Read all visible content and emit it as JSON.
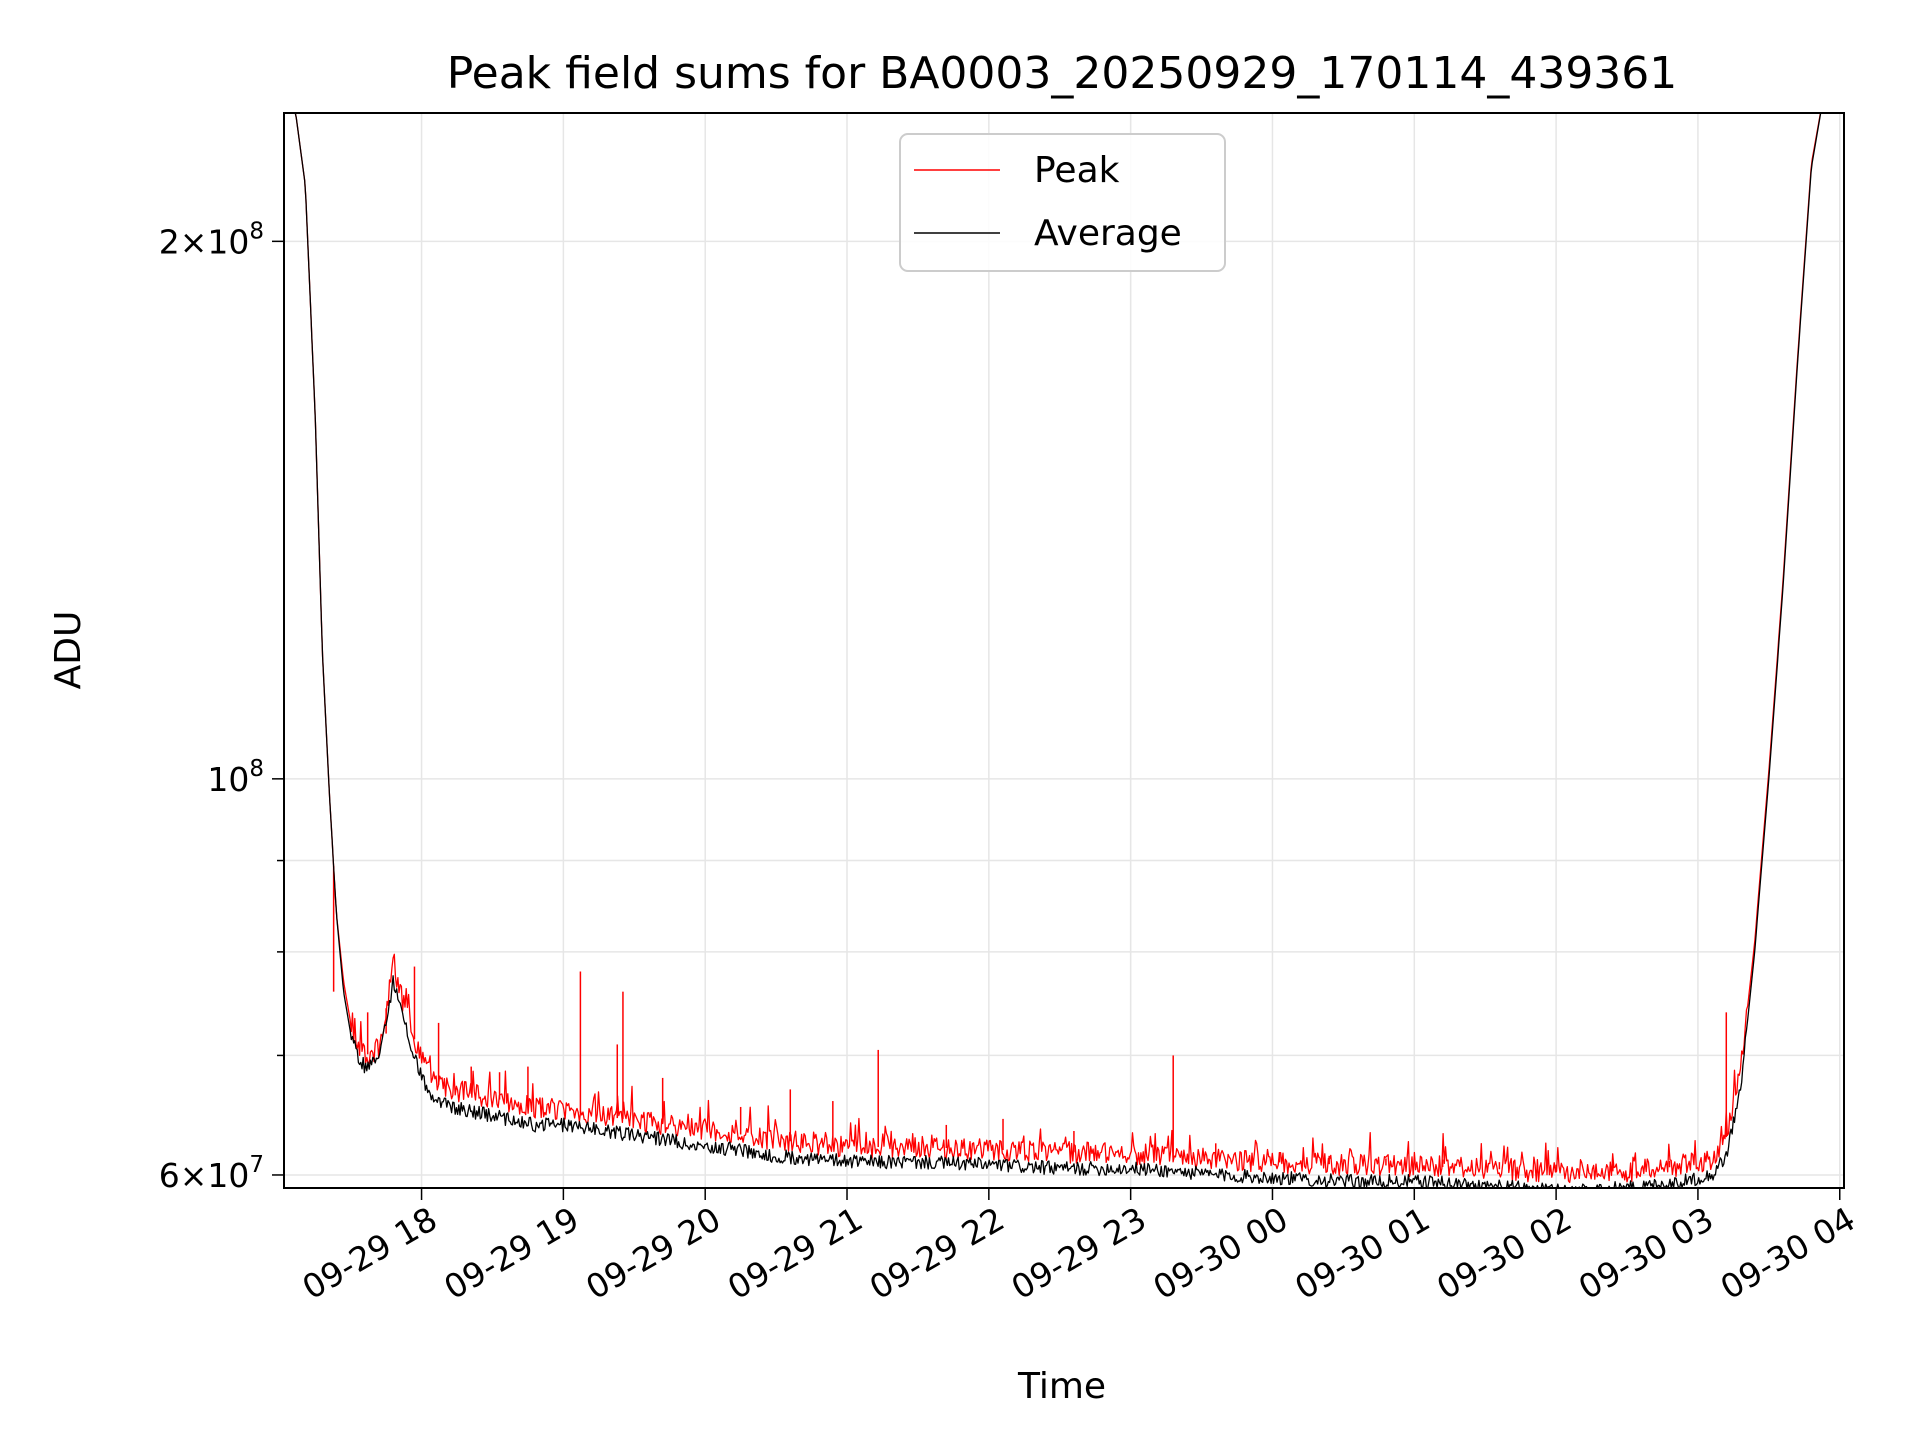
{
  "chart_data": {
    "type": "line",
    "title": "Peak field sums for BA0003_20250929_170114_439361",
    "xlabel": "Time",
    "ylabel": "ADU",
    "x_unit": "hours since 09-29 17:00",
    "xlim": [
      0.03,
      11.03
    ],
    "ylim": [
      59000000,
      236000000
    ],
    "yscale": "log",
    "grid": true,
    "legend_position": "upper-center",
    "x_ticks": [
      {
        "value": 1,
        "label": "09-29 18"
      },
      {
        "value": 2,
        "label": "09-29 19"
      },
      {
        "value": 3,
        "label": "09-29 20"
      },
      {
        "value": 4,
        "label": "09-29 21"
      },
      {
        "value": 5,
        "label": "09-29 22"
      },
      {
        "value": 6,
        "label": "09-29 23"
      },
      {
        "value": 7,
        "label": "09-30 00"
      },
      {
        "value": 8,
        "label": "09-30 01"
      },
      {
        "value": 9,
        "label": "09-30 02"
      },
      {
        "value": 10,
        "label": "09-30 03"
      },
      {
        "value": 11,
        "label": "09-30 04"
      }
    ],
    "y_major_ticks": [
      {
        "value": 60000000,
        "label_mantissa": "6×10",
        "label_exp": "7"
      },
      {
        "value": 100000000,
        "label_mantissa": "10",
        "label_exp": "8"
      },
      {
        "value": 200000000,
        "label_mantissa": "2×10",
        "label_exp": "8"
      }
    ],
    "y_minor_ticks": [
      70000000,
      80000000,
      90000000
    ],
    "series": [
      {
        "name": "Average",
        "color": "#000000",
        "x": [
          0.1,
          0.18,
          0.25,
          0.3,
          0.35,
          0.4,
          0.45,
          0.5,
          0.55,
          0.6,
          0.7,
          0.8,
          0.9,
          1.0,
          1.1,
          1.2,
          1.4,
          1.6,
          1.8,
          2.0,
          2.3,
          2.6,
          2.9,
          3.2,
          3.5,
          3.8,
          4.1,
          4.5,
          5.0,
          5.5,
          6.0,
          6.3,
          6.6,
          7.0,
          7.5,
          8.0,
          8.5,
          9.0,
          9.5,
          9.9,
          10.1,
          10.2,
          10.3,
          10.4,
          10.5,
          10.6,
          10.7,
          10.8,
          10.9,
          11.0,
          11.05
        ],
        "y": [
          240000000,
          215000000,
          160000000,
          118000000,
          98000000,
          84000000,
          76000000,
          72000000,
          70000000,
          69000000,
          69500000,
          77000000,
          72000000,
          68000000,
          66000000,
          65500000,
          65000000,
          64500000,
          64000000,
          64000000,
          63500000,
          63000000,
          62500000,
          62000000,
          61500000,
          61200000,
          61000000,
          61000000,
          60800000,
          60500000,
          60500000,
          60300000,
          60000000,
          59800000,
          59500000,
          59500000,
          59200000,
          58800000,
          59000000,
          59500000,
          60000000,
          61500000,
          67000000,
          80000000,
          100000000,
          128000000,
          170000000,
          220000000,
          245000000,
          250000000,
          252000000
        ]
      },
      {
        "name": "Peak",
        "color": "#ff0000",
        "x": [
          0.1,
          0.18,
          0.25,
          0.3,
          0.35,
          0.4,
          0.45,
          0.5,
          0.55,
          0.6,
          0.7,
          0.8,
          0.9,
          1.0,
          1.1,
          1.2,
          1.4,
          1.6,
          1.8,
          2.0,
          2.3,
          2.6,
          2.9,
          3.2,
          3.5,
          3.8,
          4.1,
          4.5,
          5.0,
          5.5,
          6.0,
          6.3,
          6.6,
          7.0,
          7.5,
          8.0,
          8.5,
          9.0,
          9.5,
          9.9,
          10.1,
          10.2,
          10.3,
          10.4,
          10.5,
          10.6,
          10.7,
          10.8,
          10.9,
          11.0,
          11.05
        ],
        "y": [
          240000000,
          215000000,
          160000000,
          118000000,
          98000000,
          84000000,
          77000000,
          73000000,
          71000000,
          70000000,
          70500000,
          78500000,
          73500000,
          69500000,
          67500000,
          67000000,
          66500000,
          66000000,
          65500000,
          65200000,
          64700000,
          64200000,
          63800000,
          63300000,
          62800000,
          62400000,
          62200000,
          62200000,
          62000000,
          61800000,
          61700000,
          61400000,
          61200000,
          61000000,
          60800000,
          60700000,
          60500000,
          60200000,
          60300000,
          60700000,
          61300000,
          63000000,
          68500000,
          81000000,
          101000000,
          129000000,
          171000000,
          221000000,
          245000000,
          250000000,
          252000000
        ],
        "spikes": [
          {
            "x": 0.38,
            "y": 76000000
          },
          {
            "x": 0.62,
            "y": 74000000
          },
          {
            "x": 0.75,
            "y": 72000000
          },
          {
            "x": 0.95,
            "y": 78500000
          },
          {
            "x": 1.12,
            "y": 73000000
          },
          {
            "x": 1.35,
            "y": 69000000
          },
          {
            "x": 1.55,
            "y": 68500000
          },
          {
            "x": 1.75,
            "y": 69000000
          },
          {
            "x": 2.12,
            "y": 78000000
          },
          {
            "x": 2.38,
            "y": 71000000
          },
          {
            "x": 2.42,
            "y": 76000000
          },
          {
            "x": 2.7,
            "y": 68000000
          },
          {
            "x": 3.25,
            "y": 65500000
          },
          {
            "x": 3.6,
            "y": 67000000
          },
          {
            "x": 3.9,
            "y": 66000000
          },
          {
            "x": 4.22,
            "y": 70500000
          },
          {
            "x": 4.7,
            "y": 64000000
          },
          {
            "x": 5.1,
            "y": 64500000
          },
          {
            "x": 5.6,
            "y": 63500000
          },
          {
            "x": 6.3,
            "y": 70000000
          },
          {
            "x": 6.6,
            "y": 62500000
          },
          {
            "x": 7.05,
            "y": 61800000
          },
          {
            "x": 7.4,
            "y": 61500000
          },
          {
            "x": 7.8,
            "y": 61300000
          },
          {
            "x": 8.2,
            "y": 61200000
          },
          {
            "x": 8.6,
            "y": 61000000
          },
          {
            "x": 9.0,
            "y": 60800000
          },
          {
            "x": 9.4,
            "y": 60900000
          },
          {
            "x": 9.8,
            "y": 61100000
          },
          {
            "x": 10.2,
            "y": 74000000
          }
        ]
      }
    ],
    "legend": [
      {
        "name": "Peak",
        "color": "#ff0000"
      },
      {
        "name": "Average",
        "color": "#000000"
      }
    ]
  }
}
